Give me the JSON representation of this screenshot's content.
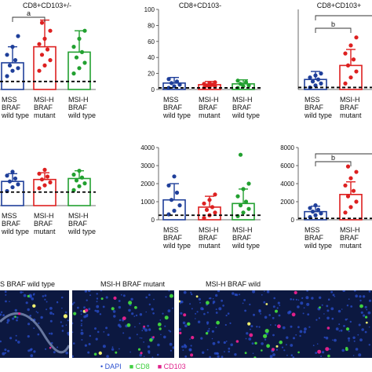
{
  "colors": {
    "mss": "#1f3f9a",
    "msih_mutant": "#dd2020",
    "msih_wild": "#22a030",
    "axis": "#444444",
    "cutoff": "#000000",
    "sig_bracket": "#333333",
    "tissue_bg": "#0c1840",
    "dapi": "#2a4fd0",
    "cd8": "#3fcf3f",
    "cd103": "#e0208a"
  },
  "chart_data": [
    {
      "type": "bar",
      "title": "CD8+CD103+/-",
      "categories": [
        "MSS BRAF wild type",
        "MSI-H BRAF mutant",
        "MSI-H BRAF wild type"
      ],
      "category_lines": [
        [
          "MSS",
          "BRAF",
          "wild type"
        ],
        [
          "MSI-H",
          "BRAF",
          "mutant"
        ],
        [
          "MSI-H",
          "BRAF",
          "wild type"
        ]
      ],
      "values": [
        10,
        16,
        14
      ],
      "error_upper": [
        16,
        26,
        22
      ],
      "ylim": [
        0,
        30
      ],
      "yticks": [],
      "cutoff": 3,
      "significance": [
        {
          "from": 0,
          "to": 1,
          "label": "a"
        }
      ],
      "points": [
        [
          5,
          7,
          8,
          9,
          11,
          13,
          16,
          20
        ],
        [
          7,
          9,
          11,
          13,
          15,
          17,
          19,
          22,
          25
        ],
        [
          6,
          8,
          10,
          12,
          14,
          16,
          19,
          22
        ]
      ]
    },
    {
      "type": "bar",
      "title": "CD8+CD103-",
      "categories": [
        "MSS BRAF wild type",
        "MSI-H BRAF mutant",
        "MSI-H BRAF wild type"
      ],
      "category_lines": [
        [
          "MSS",
          "BRAF",
          "wild type"
        ],
        [
          "MSI-H",
          "BRAF",
          "mutant"
        ],
        [
          "MSI-H",
          "BRAF",
          "wild type"
        ]
      ],
      "values": [
        8,
        6,
        7
      ],
      "error_upper": [
        15,
        10,
        12
      ],
      "ylim": [
        0,
        100
      ],
      "yticks": [
        0,
        20,
        40,
        60,
        80,
        100
      ],
      "cutoff": 2,
      "significance": [],
      "points": [
        [
          2,
          4,
          6,
          8,
          10,
          13
        ],
        [
          2,
          3,
          4,
          5,
          6,
          7,
          8,
          9
        ],
        [
          2,
          4,
          5,
          7,
          9,
          11
        ]
      ]
    },
    {
      "type": "bar",
      "title": "CD8+CD103+",
      "categories": [
        "MSS BRAF wild type",
        "MSI-H BRAF mutant",
        "MSI-H BRAF wild type"
      ],
      "category_lines": [
        [
          "MSS",
          "BRAF",
          "wild type"
        ],
        [
          "MSI-H",
          "BRAF",
          "mutant"
        ],
        [
          "MSI-H",
          "BRAF",
          "wild type"
        ]
      ],
      "values": [
        5,
        12,
        null
      ],
      "error_upper": [
        9,
        20,
        null
      ],
      "ylim": [
        0,
        40
      ],
      "yticks": [],
      "cutoff": 1,
      "significance": [
        {
          "from": 0,
          "to": 2,
          "label": ""
        },
        {
          "from": 0,
          "to": 1,
          "label": "b"
        }
      ],
      "points": [
        [
          1,
          2,
          3,
          4,
          5,
          6,
          7,
          8
        ],
        [
          3,
          6,
          9,
          12,
          15,
          18,
          22,
          26
        ],
        []
      ]
    },
    {
      "type": "bar",
      "title": "",
      "categories": [
        "MSS BRAF wild type",
        "MSI-H BRAF mutant",
        "MSI-H BRAF wild type"
      ],
      "category_lines": [
        [
          "MSS",
          "BRAF",
          "wild type"
        ],
        [
          "MSI-H",
          "BRAF",
          "mutant"
        ],
        [
          "MSI-H",
          "BRAF",
          "wild type"
        ]
      ],
      "values": [
        1250,
        1350,
        1400
      ],
      "error_upper": [
        1650,
        1700,
        1800
      ],
      "ylim": [
        0,
        3000
      ],
      "yticks": [],
      "cutoff": 700,
      "significance": [],
      "points": [
        [
          750,
          950,
          1100,
          1250,
          1400,
          1550,
          1750
        ],
        [
          900,
          1050,
          1200,
          1350,
          1500,
          1650,
          1850
        ],
        [
          800,
          1000,
          1150,
          1300,
          1450,
          1600,
          1800
        ]
      ]
    },
    {
      "type": "bar",
      "title": "",
      "categories": [
        "MSS BRAF wild type",
        "MSI-H BRAF mutant",
        "MSI-H BRAF wild type"
      ],
      "category_lines": [
        [
          "MSS",
          "BRAF",
          "wild type"
        ],
        [
          "MSI-H",
          "BRAF",
          "mutant"
        ],
        [
          "MSI-H",
          "BRAF",
          "wild type"
        ]
      ],
      "values": [
        1100,
        700,
        900
      ],
      "error_upper": [
        2000,
        1300,
        1700
      ],
      "ylim": [
        0,
        4000
      ],
      "yticks": [
        0,
        1000,
        2000,
        3000,
        4000
      ],
      "cutoff": 250,
      "significance": [],
      "points": [
        [
          300,
          500,
          800,
          1100,
          1500,
          1900,
          2400
        ],
        [
          100,
          250,
          400,
          550,
          700,
          900,
          1100,
          1400
        ],
        [
          200,
          400,
          600,
          800,
          1000,
          1300,
          1700,
          2000,
          3600
        ]
      ]
    },
    {
      "type": "bar",
      "title": "",
      "categories": [
        "MSS BRAF wild type",
        "MSI-H BRAF mutant",
        "MSI-H BRAF wild type"
      ],
      "category_lines": [
        [
          "MSS",
          "BRAF",
          "wild type"
        ],
        [
          "MSI-H",
          "BRAF",
          "mutant"
        ],
        [
          "MSI-H",
          "BRAF",
          "wild type"
        ]
      ],
      "values": [
        900,
        2800,
        null
      ],
      "error_upper": [
        1500,
        4200,
        null
      ],
      "ylim": [
        0,
        8000
      ],
      "yticks": [
        0,
        2000,
        4000,
        6000,
        8000
      ],
      "cutoff": 150,
      "significance": [
        {
          "from": 0,
          "to": 2,
          "label": ""
        },
        {
          "from": 0,
          "to": 1,
          "label": "b"
        }
      ],
      "points": [
        [
          300,
          500,
          700,
          900,
          1100,
          1300,
          1600
        ],
        [
          800,
          1400,
          2000,
          2600,
          3200,
          3800,
          4600,
          5300,
          5900
        ],
        []
      ]
    }
  ],
  "micrographs": [
    {
      "title": "S BRAF wild type"
    },
    {
      "title": "MSI-H BRAF mutant"
    },
    {
      "title": "MSI-H BRAF wild"
    }
  ],
  "stain_legend": {
    "dapi": "DAPI",
    "cd8": "CD8",
    "cd103": "CD103"
  }
}
